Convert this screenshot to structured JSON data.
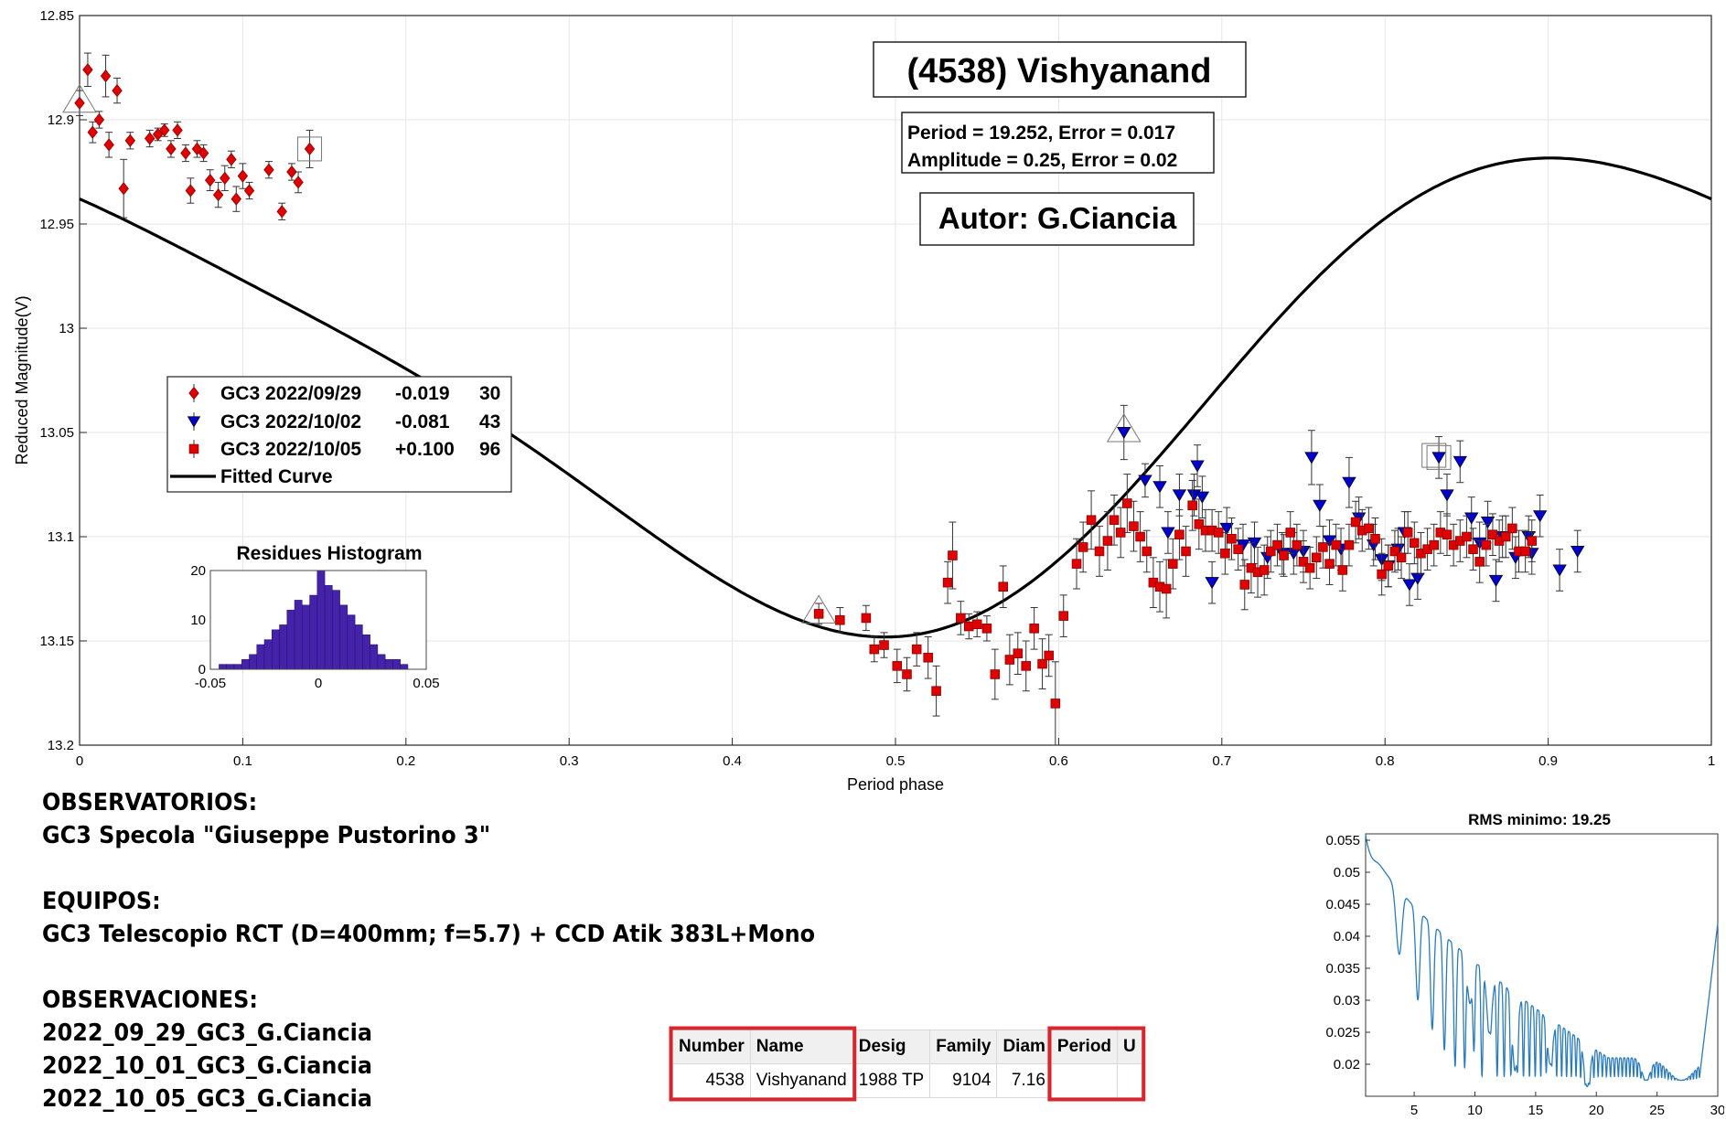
{
  "chart_data": [
    {
      "type": "scatter",
      "title": "(4538) Vishyanand",
      "xlabel": "Period phase",
      "ylabel": "Reduced Magnitude(V)",
      "xlim": [
        0,
        1
      ],
      "ylim": [
        12.85,
        13.2
      ],
      "y_reversed": true,
      "grid": true,
      "x_ticks": [
        "0",
        "0.1",
        "0.2",
        "0.3",
        "0.4",
        "0.5",
        "0.6",
        "0.7",
        "0.8",
        "0.9",
        "1"
      ],
      "y_ticks": [
        "12.85",
        "12.9",
        "12.95",
        "13",
        "13.05",
        "13.1",
        "13.15",
        "13.2"
      ],
      "annotations": {
        "period_line": "Period =  19.252, Error = 0.017",
        "amplitude_line": "Amplitude = 0.25, Error = 0.02",
        "author": "Autor: G.Ciancia"
      },
      "legend_position": "middle-left",
      "legend": [
        {
          "label": "GC3 2022/09/29",
          "offset": "-0.019",
          "count": "30",
          "marker": "diamond",
          "color": "#e00000"
        },
        {
          "label": "GC3 2022/10/02",
          "offset": "-0.081",
          "count": "43",
          "marker": "triangle-down",
          "color": "#0000cc"
        },
        {
          "label": "GC3 2022/10/05",
          "offset": "+0.100",
          "count": "96",
          "marker": "square",
          "color": "#e00000"
        },
        {
          "label": "Fitted Curve",
          "marker": "line",
          "color": "#000000"
        }
      ],
      "series": [
        {
          "name": "GC3 2022/09/29",
          "points": [
            [
              0.0,
              12.892,
              0.006
            ],
            [
              0.005,
              12.876,
              0.008
            ],
            [
              0.008,
              12.906,
              0.005
            ],
            [
              0.012,
              12.9,
              0.004
            ],
            [
              0.016,
              12.879,
              0.01
            ],
            [
              0.018,
              12.912,
              0.006
            ],
            [
              0.023,
              12.886,
              0.006
            ],
            [
              0.027,
              12.933,
              0.014
            ],
            [
              0.031,
              12.91,
              0.004
            ],
            [
              0.043,
              12.909,
              0.004
            ],
            [
              0.048,
              12.907,
              0.003
            ],
            [
              0.052,
              12.905,
              0.003
            ],
            [
              0.056,
              12.914,
              0.004
            ],
            [
              0.06,
              12.905,
              0.004
            ],
            [
              0.065,
              12.916,
              0.004
            ],
            [
              0.068,
              12.934,
              0.006
            ],
            [
              0.072,
              12.914,
              0.004
            ],
            [
              0.076,
              12.916,
              0.004
            ],
            [
              0.08,
              12.929,
              0.005
            ],
            [
              0.085,
              12.936,
              0.006
            ],
            [
              0.089,
              12.928,
              0.006
            ],
            [
              0.093,
              12.919,
              0.004
            ],
            [
              0.096,
              12.938,
              0.006
            ],
            [
              0.1,
              12.927,
              0.006
            ],
            [
              0.104,
              12.934,
              0.004
            ],
            [
              0.116,
              12.924,
              0.004
            ],
            [
              0.124,
              12.944,
              0.004
            ],
            [
              0.13,
              12.925,
              0.004
            ],
            [
              0.134,
              12.93,
              0.005
            ],
            [
              0.141,
              12.914,
              0.009
            ]
          ]
        },
        {
          "name": "GC3 2022/10/02",
          "points": [
            [
              0.64,
              13.05,
              0.013
            ],
            [
              0.653,
              13.073,
              0.008
            ],
            [
              0.662,
              13.076,
              0.01
            ],
            [
              0.667,
              13.098,
              0.01
            ],
            [
              0.674,
              13.08,
              0.01
            ],
            [
              0.683,
              13.08,
              0.01
            ],
            [
              0.685,
              13.066,
              0.01
            ],
            [
              0.688,
              13.081,
              0.01
            ],
            [
              0.694,
              13.122,
              0.01
            ],
            [
              0.703,
              13.096,
              0.01
            ],
            [
              0.713,
              13.104,
              0.01
            ],
            [
              0.72,
              13.103,
              0.01
            ],
            [
              0.728,
              13.11,
              0.01
            ],
            [
              0.737,
              13.108,
              0.01
            ],
            [
              0.744,
              13.108,
              0.01
            ],
            [
              0.75,
              13.107,
              0.01
            ],
            [
              0.755,
              13.062,
              0.013
            ],
            [
              0.76,
              13.085,
              0.01
            ],
            [
              0.766,
              13.102,
              0.01
            ],
            [
              0.773,
              13.106,
              0.01
            ],
            [
              0.778,
              13.074,
              0.012
            ],
            [
              0.784,
              13.091,
              0.01
            ],
            [
              0.793,
              13.104,
              0.01
            ],
            [
              0.798,
              13.111,
              0.01
            ],
            [
              0.802,
              13.114,
              0.01
            ],
            [
              0.808,
              13.106,
              0.01
            ],
            [
              0.812,
              13.098,
              0.01
            ],
            [
              0.815,
              13.123,
              0.01
            ],
            [
              0.82,
              13.12,
              0.01
            ],
            [
              0.833,
              13.062,
              0.01
            ],
            [
              0.838,
              13.08,
              0.01
            ],
            [
              0.846,
              13.064,
              0.01
            ],
            [
              0.853,
              13.091,
              0.01
            ],
            [
              0.858,
              13.103,
              0.01
            ],
            [
              0.863,
              13.093,
              0.01
            ],
            [
              0.868,
              13.121,
              0.01
            ],
            [
              0.872,
              13.1,
              0.01
            ],
            [
              0.88,
              13.11,
              0.01
            ],
            [
              0.888,
              13.1,
              0.01
            ],
            [
              0.89,
              13.108,
              0.01
            ],
            [
              0.895,
              13.09,
              0.01
            ],
            [
              0.907,
              13.116,
              0.01
            ],
            [
              0.918,
              13.107,
              0.01
            ]
          ]
        },
        {
          "name": "GC3 2022/10/05",
          "points": [
            [
              0.453,
              13.137,
              0.005
            ],
            [
              0.466,
              13.14,
              0.006
            ],
            [
              0.482,
              13.139,
              0.006
            ],
            [
              0.487,
              13.154,
              0.006
            ],
            [
              0.493,
              13.152,
              0.006
            ],
            [
              0.501,
              13.162,
              0.008
            ],
            [
              0.507,
              13.166,
              0.008
            ],
            [
              0.513,
              13.154,
              0.008
            ],
            [
              0.52,
              13.158,
              0.01
            ],
            [
              0.525,
              13.174,
              0.012
            ],
            [
              0.532,
              13.122,
              0.01
            ],
            [
              0.535,
              13.109,
              0.016
            ],
            [
              0.54,
              13.139,
              0.008
            ],
            [
              0.545,
              13.143,
              0.006
            ],
            [
              0.55,
              13.142,
              0.006
            ],
            [
              0.556,
              13.144,
              0.006
            ],
            [
              0.561,
              13.166,
              0.012
            ],
            [
              0.566,
              13.124,
              0.01
            ],
            [
              0.57,
              13.159,
              0.012
            ],
            [
              0.575,
              13.156,
              0.01
            ],
            [
              0.58,
              13.162,
              0.012
            ],
            [
              0.585,
              13.144,
              0.01
            ],
            [
              0.59,
              13.161,
              0.012
            ],
            [
              0.594,
              13.157,
              0.01
            ],
            [
              0.598,
              13.18,
              0.02
            ],
            [
              0.603,
              13.138,
              0.01
            ],
            [
              0.611,
              13.113,
              0.012
            ],
            [
              0.615,
              13.105,
              0.012
            ],
            [
              0.62,
              13.092,
              0.014
            ],
            [
              0.625,
              13.107,
              0.012
            ],
            [
              0.63,
              13.102,
              0.014
            ],
            [
              0.634,
              13.092,
              0.012
            ],
            [
              0.638,
              13.098,
              0.012
            ],
            [
              0.642,
              13.084,
              0.014
            ],
            [
              0.646,
              13.095,
              0.012
            ],
            [
              0.65,
              13.1,
              0.012
            ],
            [
              0.654,
              13.107,
              0.01
            ],
            [
              0.658,
              13.122,
              0.012
            ],
            [
              0.662,
              13.124,
              0.012
            ],
            [
              0.666,
              13.125,
              0.014
            ],
            [
              0.67,
              13.113,
              0.012
            ],
            [
              0.674,
              13.099,
              0.012
            ],
            [
              0.678,
              13.107,
              0.012
            ],
            [
              0.682,
              13.085,
              0.012
            ],
            [
              0.686,
              13.094,
              0.012
            ],
            [
              0.69,
              13.097,
              0.01
            ],
            [
              0.694,
              13.097,
              0.01
            ],
            [
              0.698,
              13.098,
              0.01
            ],
            [
              0.702,
              13.108,
              0.01
            ],
            [
              0.706,
              13.101,
              0.01
            ],
            [
              0.71,
              13.106,
              0.01
            ],
            [
              0.714,
              13.123,
              0.012
            ],
            [
              0.718,
              13.115,
              0.012
            ],
            [
              0.722,
              13.117,
              0.012
            ],
            [
              0.726,
              13.116,
              0.012
            ],
            [
              0.73,
              13.107,
              0.01
            ],
            [
              0.734,
              13.104,
              0.01
            ],
            [
              0.738,
              13.109,
              0.01
            ],
            [
              0.742,
              13.098,
              0.01
            ],
            [
              0.746,
              13.104,
              0.01
            ],
            [
              0.75,
              13.112,
              0.01
            ],
            [
              0.754,
              13.115,
              0.01
            ],
            [
              0.758,
              13.11,
              0.01
            ],
            [
              0.762,
              13.105,
              0.01
            ],
            [
              0.766,
              13.113,
              0.01
            ],
            [
              0.77,
              13.104,
              0.01
            ],
            [
              0.774,
              13.116,
              0.01
            ],
            [
              0.778,
              13.104,
              0.01
            ],
            [
              0.782,
              13.093,
              0.01
            ],
            [
              0.786,
              13.097,
              0.01
            ],
            [
              0.79,
              13.096,
              0.01
            ],
            [
              0.794,
              13.101,
              0.01
            ],
            [
              0.798,
              13.118,
              0.01
            ],
            [
              0.802,
              13.114,
              0.01
            ],
            [
              0.806,
              13.107,
              0.01
            ],
            [
              0.81,
              13.11,
              0.01
            ],
            [
              0.814,
              13.098,
              0.01
            ],
            [
              0.818,
              13.103,
              0.01
            ],
            [
              0.822,
              13.108,
              0.01
            ],
            [
              0.826,
              13.106,
              0.01
            ],
            [
              0.83,
              13.104,
              0.01
            ],
            [
              0.834,
              13.098,
              0.01
            ],
            [
              0.838,
              13.099,
              0.01
            ],
            [
              0.842,
              13.104,
              0.01
            ],
            [
              0.846,
              13.102,
              0.01
            ],
            [
              0.85,
              13.1,
              0.01
            ],
            [
              0.854,
              13.106,
              0.01
            ],
            [
              0.858,
              13.112,
              0.01
            ],
            [
              0.862,
              13.104,
              0.01
            ],
            [
              0.866,
              13.099,
              0.01
            ],
            [
              0.87,
              13.102,
              0.01
            ],
            [
              0.874,
              13.1,
              0.01
            ],
            [
              0.878,
              13.096,
              0.01
            ],
            [
              0.882,
              13.107,
              0.01
            ],
            [
              0.886,
              13.107,
              0.01
            ],
            [
              0.89,
              13.102,
              0.01
            ]
          ]
        }
      ],
      "histogram": {
        "title": "Residues Histogram",
        "x_ticks": [
          "-0.05",
          "0",
          "0.05"
        ],
        "y_ticks": [
          "0",
          "10",
          "20"
        ],
        "xlim": [
          -0.05,
          0.05
        ],
        "ylim": [
          0,
          20
        ],
        "bin_width": 0.0035,
        "bin_start": -0.046,
        "counts": [
          1,
          1,
          1,
          2,
          3,
          5,
          6,
          8,
          9,
          12,
          14,
          13,
          15,
          20,
          17,
          16,
          13,
          11,
          9,
          7,
          5,
          3,
          2,
          2,
          1
        ]
      }
    },
    {
      "type": "line",
      "title": "RMS minimo: 19.25",
      "xlim": [
        1,
        30
      ],
      "ylim": [
        0.015,
        0.056
      ],
      "x_ticks": [
        "5",
        "10",
        "15",
        "20",
        "25",
        "30"
      ],
      "y_ticks": [
        "0.02",
        "0.025",
        "0.03",
        "0.035",
        "0.04",
        "0.045",
        "0.05",
        "0.055"
      ]
    }
  ],
  "info": {
    "observatories_heading": "OBSERVATORIOS:",
    "observatory": "GC3 Specola \"Giuseppe Pustorino 3\"",
    "equipment_heading": "EQUIPOS:",
    "equipment": "GC3 Telescopio RCT (D=400mm; f=5.7) + CCD Atik 383L+Mono",
    "observations_heading": "OBSERVACIONES:",
    "observations": [
      "2022_09_29_GC3_G.Ciancia",
      "2022_10_01_GC3_G.Ciancia",
      "2022_10_05_GC3_G.Ciancia"
    ]
  },
  "table": {
    "headers": [
      "Number",
      "Name",
      "Desig",
      "Family",
      "Diam",
      "Period",
      "U"
    ],
    "row": [
      "4538",
      "Vishyanand",
      "1988 TP",
      "9104",
      "7.16",
      "",
      ""
    ],
    "highlight_color": "#d9262e"
  },
  "colors": {
    "red": "#e00000",
    "blue": "#0000cc",
    "line": "#000000",
    "hist": "#4422aa",
    "rms": "#2b7bba"
  }
}
